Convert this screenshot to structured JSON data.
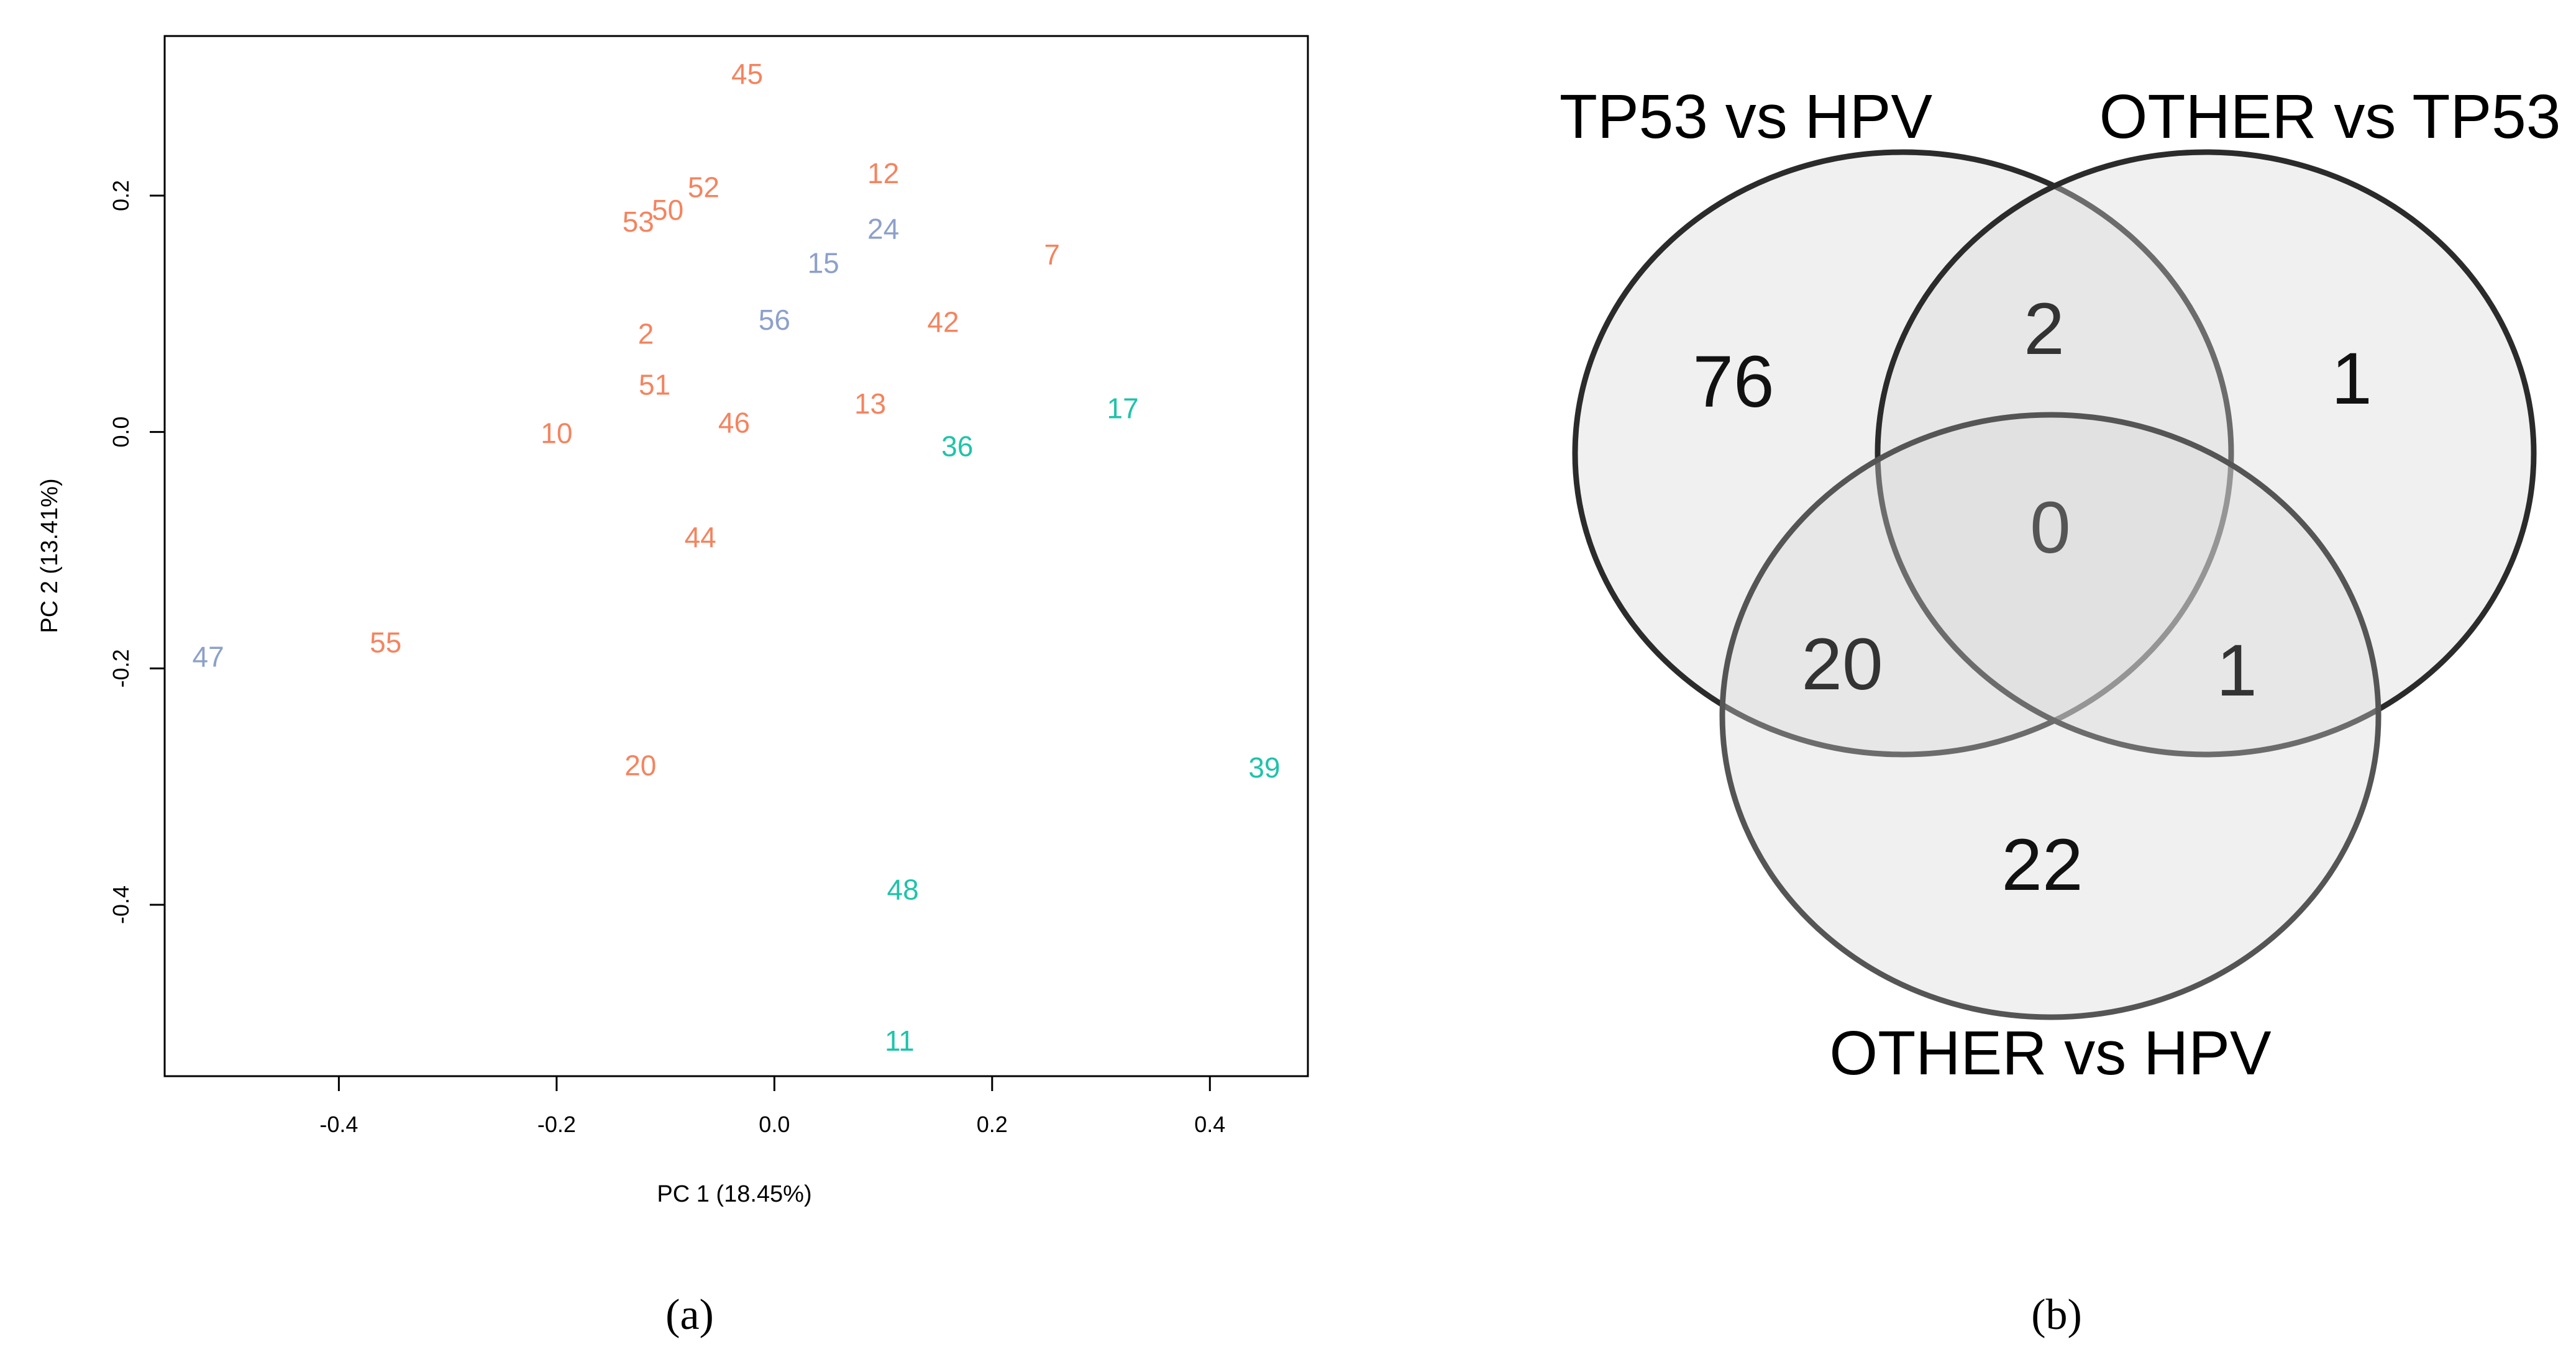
{
  "chart_data": [
    {
      "type": "scatter",
      "panel_label": "a",
      "xlabel": "PC 1 (18.45%)",
      "ylabel": "PC 2 (13.41%)",
      "xlim": [
        -0.56,
        0.49
      ],
      "ylim": [
        -0.545,
        0.335
      ],
      "xticks": [
        -0.4,
        -0.2,
        0.0,
        0.2,
        0.4
      ],
      "yticks": [
        -0.4,
        -0.2,
        0.0,
        0.2
      ],
      "xtick_labels": [
        "-0.4",
        "-0.2",
        "0.0",
        "0.2",
        "0.4"
      ],
      "ytick_labels": [
        "-0.4",
        "-0.2",
        "0.0",
        "0.2"
      ],
      "series": [
        {
          "name": "orange",
          "color": "#F4845F",
          "points": [
            {
              "label": "45",
              "x": -0.025,
              "y": 0.303
            },
            {
              "label": "12",
              "x": 0.1,
              "y": 0.219
            },
            {
              "label": "52",
              "x": -0.065,
              "y": 0.207
            },
            {
              "label": "50",
              "x": -0.098,
              "y": 0.188
            },
            {
              "label": "53",
              "x": -0.125,
              "y": 0.178
            },
            {
              "label": "7",
              "x": 0.255,
              "y": 0.15
            },
            {
              "label": "42",
              "x": 0.155,
              "y": 0.093
            },
            {
              "label": "2",
              "x": -0.118,
              "y": 0.083
            },
            {
              "label": "51",
              "x": -0.11,
              "y": 0.04
            },
            {
              "label": "13",
              "x": 0.088,
              "y": 0.024
            },
            {
              "label": "46",
              "x": -0.037,
              "y": 0.008
            },
            {
              "label": "10",
              "x": -0.2,
              "y": -0.001
            },
            {
              "label": "44",
              "x": -0.068,
              "y": -0.089
            },
            {
              "label": "55",
              "x": -0.357,
              "y": -0.178
            },
            {
              "label": "20",
              "x": -0.123,
              "y": -0.282
            }
          ]
        },
        {
          "name": "blue",
          "color": "#8DA0CB",
          "points": [
            {
              "label": "24",
              "x": 0.1,
              "y": 0.172
            },
            {
              "label": "15",
              "x": 0.045,
              "y": 0.143
            },
            {
              "label": "56",
              "x": 0.0,
              "y": 0.095
            },
            {
              "label": "47",
              "x": -0.52,
              "y": -0.19
            }
          ]
        },
        {
          "name": "teal",
          "color": "#1FC3AA",
          "points": [
            {
              "label": "17",
              "x": 0.32,
              "y": 0.02
            },
            {
              "label": "36",
              "x": 0.168,
              "y": -0.012
            },
            {
              "label": "39",
              "x": 0.45,
              "y": -0.284
            },
            {
              "label": "48",
              "x": 0.118,
              "y": -0.387
            },
            {
              "label": "11",
              "x": 0.115,
              "y": -0.515
            }
          ]
        }
      ]
    },
    {
      "type": "venn",
      "panel_label": "b",
      "sets": [
        "TP53 vs HPV",
        "OTHER vs TP53",
        "OTHER vs HPV"
      ],
      "regions": {
        "tp53_hpv_only": "76",
        "other_tp53_only": "1",
        "other_hpv_only": "22",
        "tp53hpv_and_othertp53": "2",
        "tp53hpv_and_otherhpv": "20",
        "othertp53_and_otherhpv": "1",
        "all_three": "0"
      }
    }
  ],
  "captions": {
    "a": "(a)",
    "b": "(b)"
  }
}
